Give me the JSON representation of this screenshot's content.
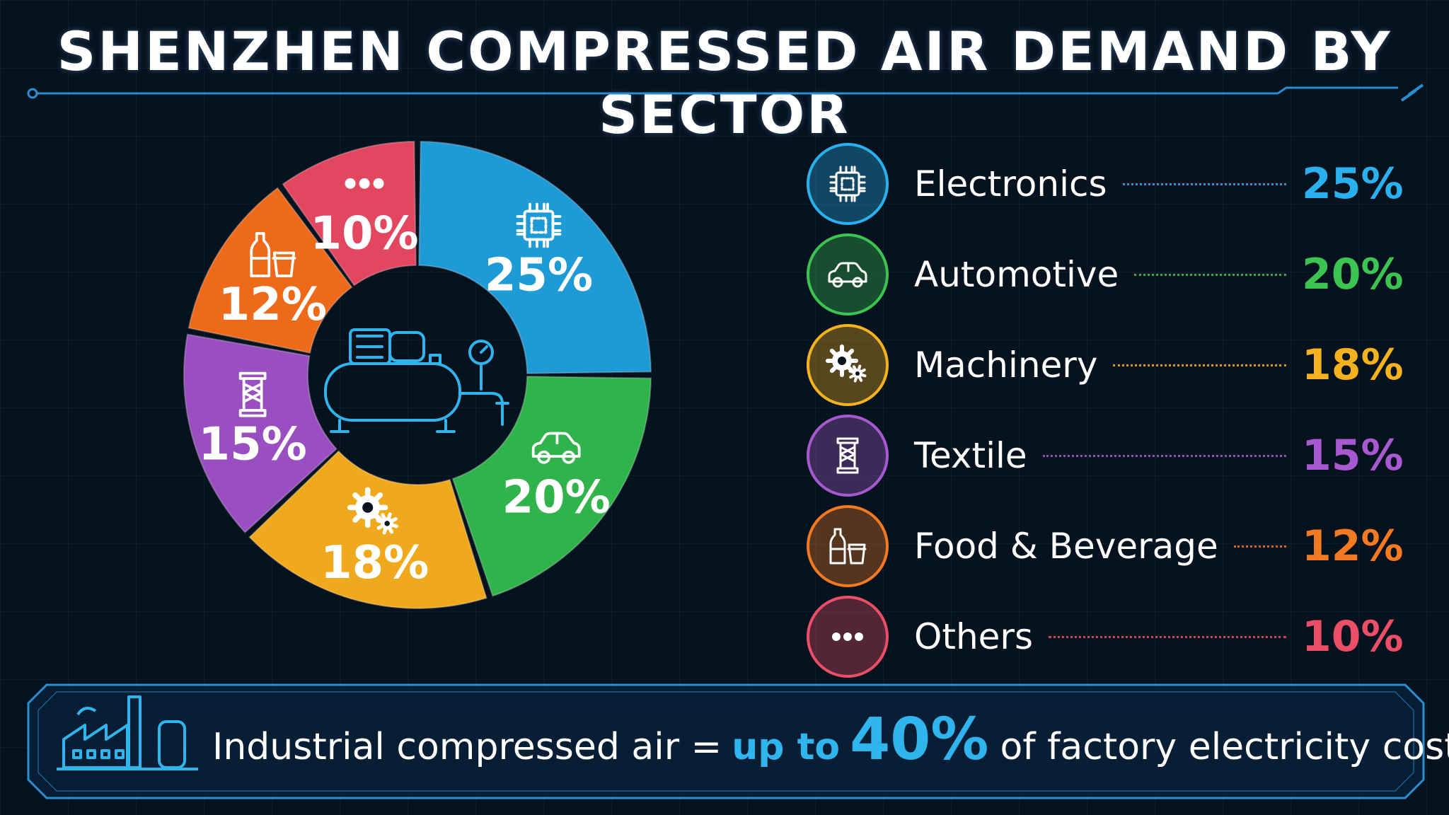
{
  "title": "SHENZHEN COMPRESSED AIR DEMAND BY SECTOR",
  "chart_data": {
    "type": "pie",
    "title": "SHENZHEN COMPRESSED AIR DEMAND BY SECTOR",
    "categories": [
      "Electronics",
      "Automotive",
      "Machinery",
      "Textile",
      "Food & Beverage",
      "Others"
    ],
    "values": [
      25,
      20,
      18,
      15,
      12,
      10
    ],
    "labels": [
      "25%",
      "20%",
      "18%",
      "15%",
      "12%",
      "10%"
    ],
    "colors": [
      "#1e9ad6",
      "#2fb34a",
      "#f0a91c",
      "#9a4fc1",
      "#ee6a1b",
      "#e2475f"
    ],
    "icons": [
      "chip-icon",
      "car-icon",
      "gears-icon",
      "spool-icon",
      "bottle-cup-icon",
      "dots-icon"
    ],
    "legend_position": "right"
  },
  "legend": [
    {
      "name": "Electronics",
      "value": "25%",
      "color": "#2ab0ee",
      "icon": "chip-icon"
    },
    {
      "name": "Automotive",
      "value": "20%",
      "color": "#3cc452",
      "icon": "car-icon"
    },
    {
      "name": "Machinery",
      "value": "18%",
      "color": "#f5b21f",
      "icon": "gears-icon"
    },
    {
      "name": "Textile",
      "value": "15%",
      "color": "#a759d0",
      "icon": "spool-icon"
    },
    {
      "name": "Food & Beverage",
      "value": "12%",
      "color": "#f27a22",
      "icon": "bottle-cup-icon"
    },
    {
      "name": "Others",
      "value": "10%",
      "color": "#ea4f67",
      "icon": "dots-icon"
    }
  ],
  "center_icon": "air-compressor-icon",
  "banner": {
    "prefix": "Industrial compressed air =",
    "highlight": "up to",
    "big": "40%",
    "suffix": "of factory electricity cost.",
    "icon": "factory-icon",
    "accent": "#2fb4ee"
  }
}
